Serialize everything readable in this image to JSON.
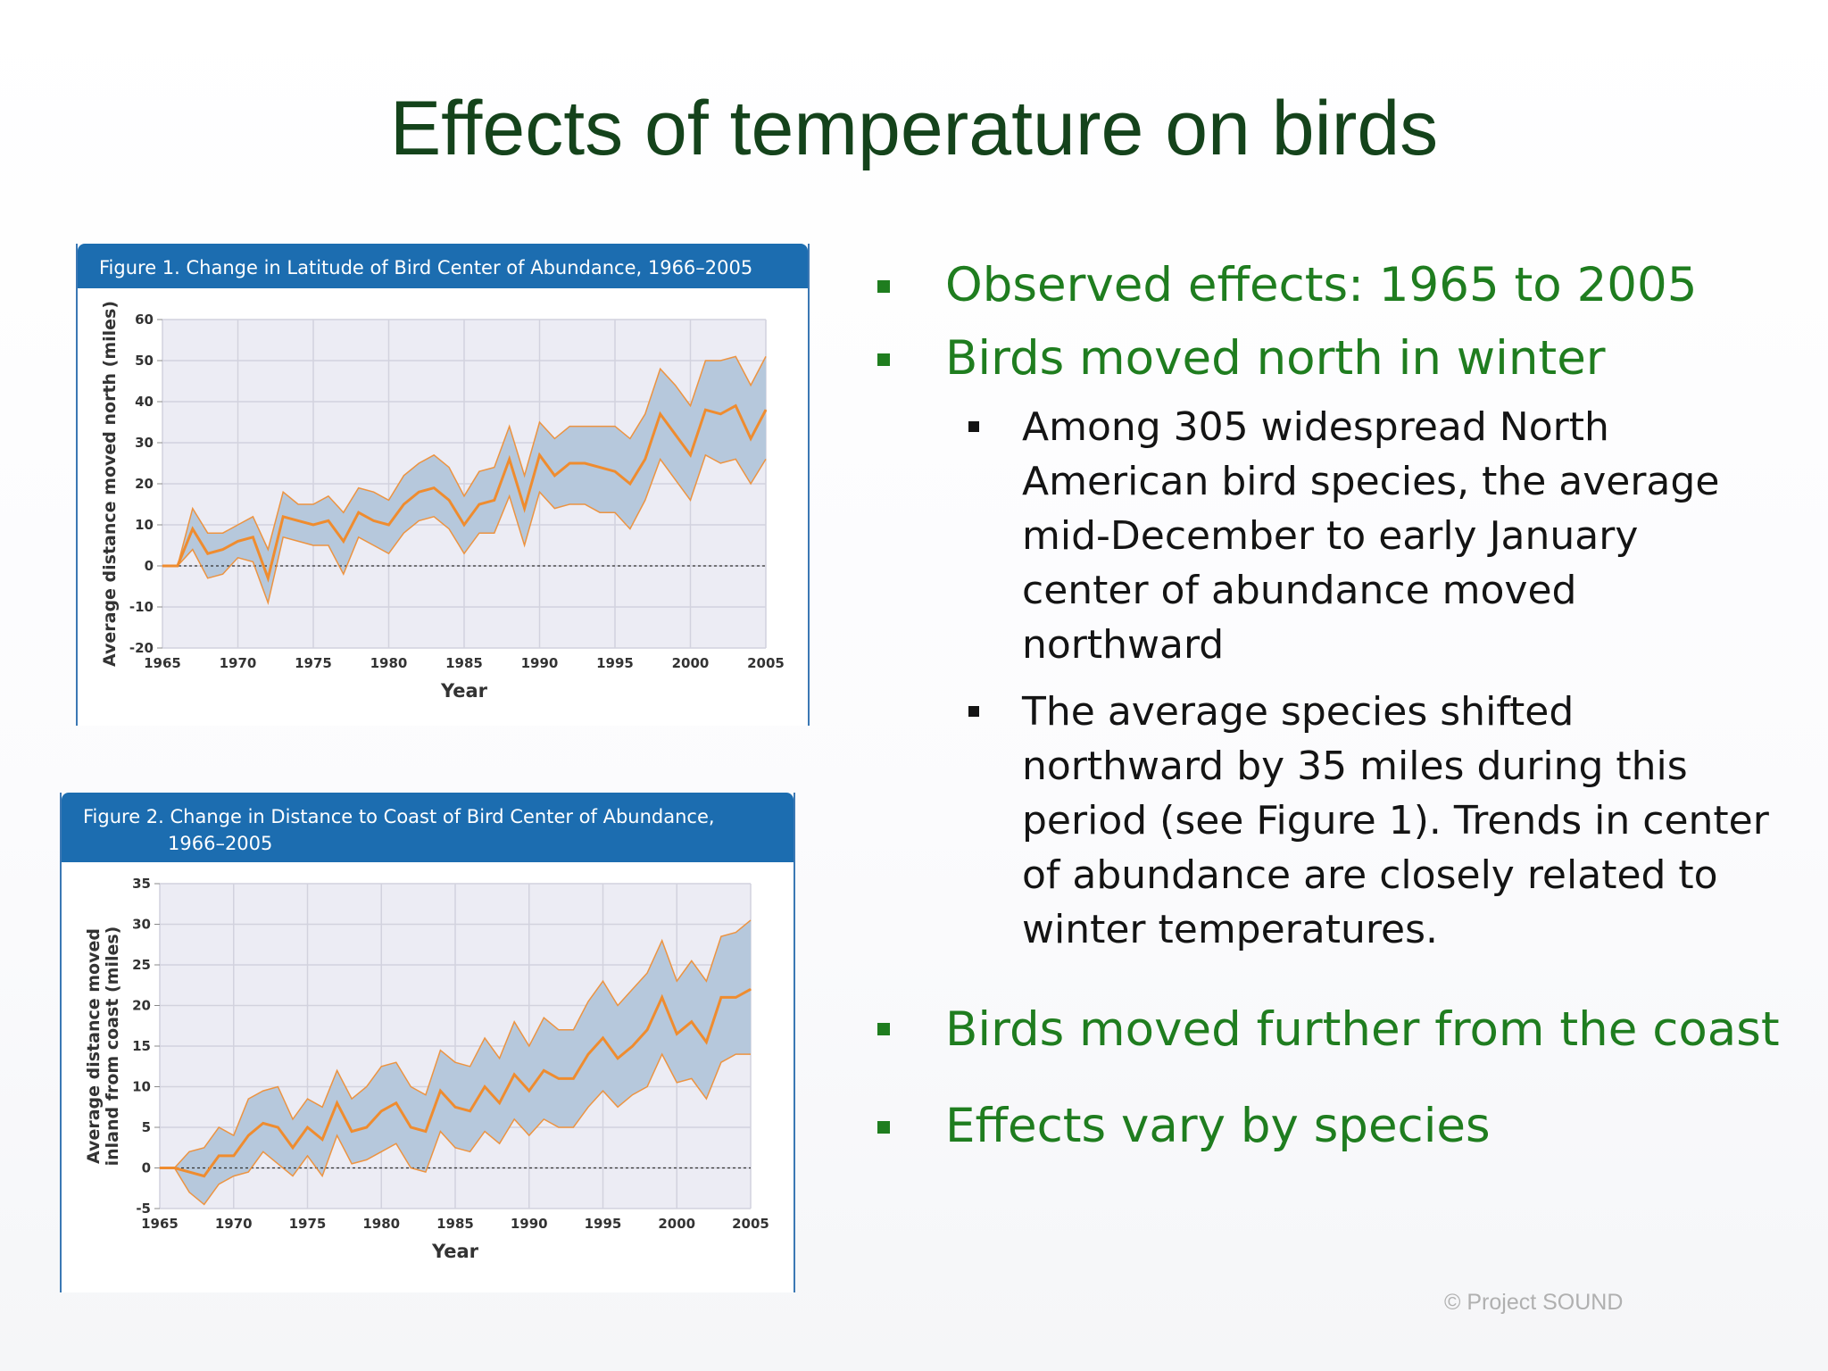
{
  "slide": {
    "title": "Effects of temperature on birds",
    "copyright": "© Project  SOUND"
  },
  "bullets": {
    "observed": "Observed effects: 1965 to 2005",
    "moved_north": "Birds moved north in winter",
    "sub_among": "Among 305 widespread North American bird species, the average mid-December to early January center of abundance moved northward",
    "sub_average": "The average species shifted northward by 35 miles during this period (see Figure 1). Trends in center of abundance are closely related to winter temperatures.",
    "coast": "Birds moved further from the coast",
    "vary": "Effects vary by species"
  },
  "colors": {
    "title": "#14431b",
    "bullet_green": "#1f7d1f",
    "header_blue": "#1c6db0",
    "band_fill": "#b6c8dc",
    "line_orange": "#ef8c2f",
    "plot_bg": "#ececf4"
  },
  "chart_data": [
    {
      "type": "area",
      "title": "Figure 1. Change in Latitude of Bird Center of Abundance, 1966–2005",
      "xlabel": "Year",
      "ylabel": "Average distance moved north (miles)",
      "xlim": [
        1965,
        2005
      ],
      "ylim": [
        -20,
        60
      ],
      "xticks": [
        1965,
        1970,
        1975,
        1980,
        1985,
        1990,
        1995,
        2000,
        2005
      ],
      "yticks": [
        60,
        50,
        40,
        30,
        20,
        10,
        0,
        -10,
        -20
      ],
      "grid": true,
      "x": [
        1966,
        1967,
        1968,
        1969,
        1970,
        1971,
        1972,
        1973,
        1974,
        1975,
        1976,
        1977,
        1978,
        1979,
        1980,
        1981,
        1982,
        1983,
        1984,
        1985,
        1986,
        1987,
        1988,
        1989,
        1990,
        1991,
        1992,
        1993,
        1994,
        1995,
        1996,
        1997,
        1998,
        1999,
        2000,
        2001,
        2002,
        2003,
        2004,
        2005
      ],
      "series": [
        {
          "role": "upper",
          "values": [
            0,
            14,
            8,
            8,
            10,
            12,
            4,
            18,
            15,
            15,
            17,
            13,
            19,
            18,
            16,
            22,
            25,
            27,
            24,
            17,
            23,
            24,
            34,
            22,
            35,
            31,
            34,
            34,
            34,
            34,
            31,
            37,
            48,
            44,
            39,
            50,
            50,
            51,
            44,
            51
          ]
        },
        {
          "role": "center",
          "values": [
            0,
            9,
            3,
            4,
            6,
            7,
            -3,
            12,
            11,
            10,
            11,
            6,
            13,
            11,
            10,
            15,
            18,
            19,
            16,
            10,
            15,
            16,
            26,
            14,
            27,
            22,
            25,
            25,
            24,
            23,
            20,
            26,
            37,
            32,
            27,
            38,
            37,
            39,
            31,
            38
          ]
        },
        {
          "role": "lower",
          "values": [
            0,
            4,
            -3,
            -2,
            2,
            1,
            -9,
            7,
            6,
            5,
            5,
            -2,
            7,
            5,
            3,
            8,
            11,
            12,
            9,
            3,
            8,
            8,
            17,
            5,
            18,
            14,
            15,
            15,
            13,
            13,
            9,
            16,
            26,
            21,
            16,
            27,
            25,
            26,
            20,
            26
          ]
        }
      ]
    },
    {
      "type": "area",
      "title": "Figure 2. Change in Distance to Coast of Bird Center of Abundance, 1966–2005",
      "title_line1": "Figure 2. Change in Distance to Coast of Bird Center of Abundance,",
      "title_line2": "1966–2005",
      "xlabel": "Year",
      "ylabel": [
        "Average distance moved",
        "inland from coast (miles)"
      ],
      "xlim": [
        1965,
        2005
      ],
      "ylim": [
        -5,
        35
      ],
      "xticks": [
        1965,
        1970,
        1975,
        1980,
        1985,
        1990,
        1995,
        2000,
        2005
      ],
      "yticks": [
        35,
        30,
        25,
        20,
        15,
        10,
        5,
        0,
        -5
      ],
      "grid": true,
      "x": [
        1966,
        1967,
        1968,
        1969,
        1970,
        1971,
        1972,
        1973,
        1974,
        1975,
        1976,
        1977,
        1978,
        1979,
        1980,
        1981,
        1982,
        1983,
        1984,
        1985,
        1986,
        1987,
        1988,
        1989,
        1990,
        1991,
        1992,
        1993,
        1994,
        1995,
        1996,
        1997,
        1998,
        1999,
        2000,
        2001,
        2002,
        2003,
        2004,
        2005
      ],
      "series": [
        {
          "role": "upper",
          "values": [
            0,
            2,
            2.5,
            5,
            4,
            8.5,
            9.5,
            10,
            6,
            8.5,
            7.5,
            12,
            8.5,
            10,
            12.5,
            13,
            10,
            9,
            14.5,
            13,
            12.5,
            16,
            13.5,
            18,
            15,
            18.5,
            17,
            17,
            20.5,
            23,
            20,
            22,
            24,
            28,
            23,
            25.5,
            23,
            28.5,
            29,
            30.5
          ]
        },
        {
          "role": "center",
          "values": [
            0,
            -0.5,
            -1,
            1.5,
            1.5,
            4,
            5.5,
            5,
            2.5,
            5,
            3.5,
            8,
            4.5,
            5,
            7,
            8,
            5,
            4.5,
            9.5,
            7.5,
            7,
            10,
            8,
            11.5,
            9.5,
            12,
            11,
            11,
            14,
            16,
            13.5,
            15,
            17,
            21,
            16.5,
            18,
            15.5,
            21,
            21,
            22
          ]
        },
        {
          "role": "lower",
          "values": [
            0,
            -3,
            -4.5,
            -2,
            -1,
            -0.5,
            2,
            0.5,
            -1,
            1.5,
            -1,
            4,
            0.5,
            1,
            2,
            3,
            0,
            -0.5,
            4.5,
            2.5,
            2,
            4.5,
            3,
            6,
            4,
            6,
            5,
            5,
            7.5,
            9.5,
            7.5,
            9,
            10,
            14,
            10.5,
            11,
            8.5,
            13,
            14,
            14
          ]
        }
      ]
    }
  ]
}
